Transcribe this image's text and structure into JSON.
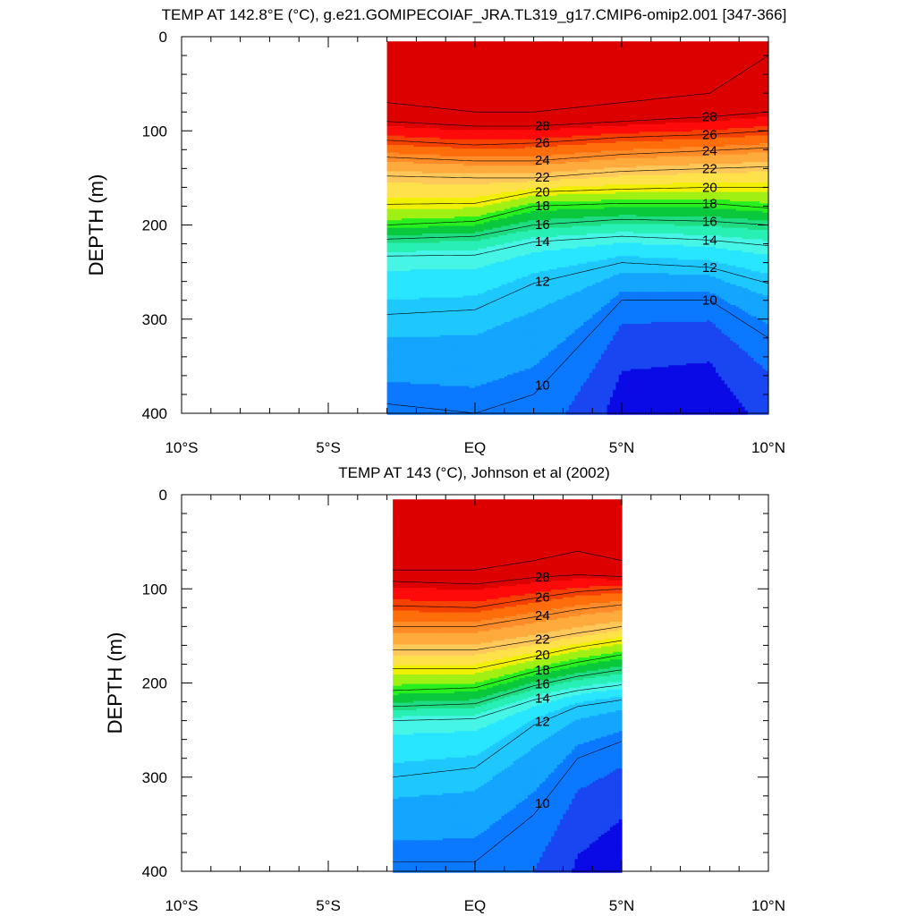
{
  "chart_data": [
    {
      "type": "contour",
      "title": "TEMP AT 142.8°E (°C), g.e21.GOMIPECOIAF_JRA.TL319_g17.CMIP6-omip2.001 [347-366]",
      "xlabel": "",
      "ylabel": "DEPTH (m)",
      "xlim": [
        -10,
        10
      ],
      "ylim": [
        400,
        0
      ],
      "x_tick_labels": [
        "10°S",
        "5°S",
        "EQ",
        "5°N",
        "10°N"
      ],
      "y_tick_labels": [
        "0",
        "100",
        "200",
        "300",
        "400"
      ],
      "data_extent_x": [
        -3,
        10
      ],
      "contour_interval": 1,
      "contour_labels": [
        "28",
        "26",
        "24",
        "22",
        "20",
        "18",
        "16",
        "14",
        "12",
        "10"
      ],
      "isotherm_depths": {
        "x": [
          -3,
          0,
          2,
          5,
          8,
          10
        ],
        "levels": {
          "29": [
            70,
            80,
            80,
            70,
            60,
            20
          ],
          "28": [
            90,
            95,
            95,
            90,
            85,
            80
          ],
          "26": [
            110,
            115,
            113,
            107,
            104,
            100
          ],
          "24": [
            128,
            132,
            132,
            125,
            121,
            118
          ],
          "22": [
            148,
            150,
            150,
            143,
            140,
            138
          ],
          "20": [
            178,
            177,
            165,
            162,
            160,
            160
          ],
          "18": [
            200,
            196,
            180,
            177,
            177,
            182
          ],
          "16": [
            215,
            212,
            200,
            194,
            196,
            200
          ],
          "14": [
            233,
            232,
            218,
            212,
            216,
            222
          ],
          "12": [
            295,
            290,
            262,
            240,
            245,
            262
          ],
          "10": [
            390,
            400,
            380,
            280,
            280,
            320
          ]
        }
      }
    },
    {
      "type": "contour",
      "title": "TEMP AT 143 (°C), Johnson et al (2002)",
      "xlabel": "",
      "ylabel": "DEPTH (m)",
      "xlim": [
        -10,
        10
      ],
      "ylim": [
        400,
        0
      ],
      "x_tick_labels": [
        "10°S",
        "5°S",
        "EQ",
        "5°N",
        "10°N"
      ],
      "y_tick_labels": [
        "0",
        "100",
        "200",
        "300",
        "400"
      ],
      "data_extent_x": [
        -2.8,
        5
      ],
      "contour_interval": 1,
      "contour_labels": [
        "28",
        "26",
        "24",
        "22",
        "20",
        "18",
        "16",
        "14",
        "12",
        "10"
      ],
      "isotherm_depths": {
        "x": [
          -2.8,
          0,
          2,
          3.5,
          5
        ],
        "levels": {
          "29": [
            80,
            80,
            70,
            60,
            70
          ],
          "28": [
            92,
            95,
            88,
            85,
            87
          ],
          "26": [
            118,
            120,
            110,
            103,
            100
          ],
          "24": [
            140,
            140,
            130,
            122,
            117
          ],
          "22": [
            165,
            165,
            155,
            147,
            140
          ],
          "20": [
            185,
            185,
            172,
            162,
            155
          ],
          "18": [
            208,
            205,
            188,
            178,
            170
          ],
          "16": [
            225,
            222,
            203,
            193,
            186
          ],
          "14": [
            240,
            238,
            218,
            208,
            202
          ],
          "12": [
            300,
            290,
            245,
            225,
            218
          ],
          "10": [
            390,
            390,
            340,
            280,
            262
          ]
        }
      }
    }
  ]
}
